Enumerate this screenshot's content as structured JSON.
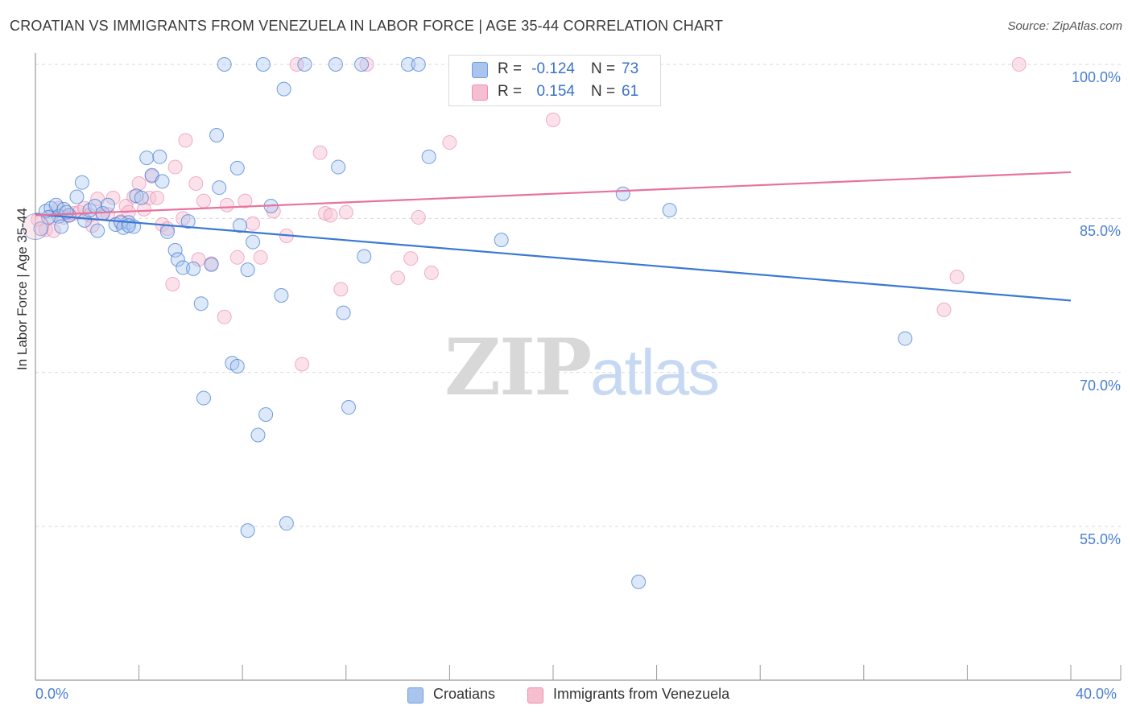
{
  "title": "CROATIAN VS IMMIGRANTS FROM VENEZUELA IN LABOR FORCE | AGE 35-44 CORRELATION CHART",
  "source": "Source: ZipAtlas.com",
  "watermark": {
    "zip": "ZIP",
    "atlas": "atlas"
  },
  "legend": {
    "rows": [
      {
        "r_label": "R =",
        "r_value": "-0.124",
        "n_label": "N =",
        "n_value": "73"
      },
      {
        "r_label": "R =",
        "r_value": "0.154",
        "n_label": "N =",
        "n_value": "61"
      }
    ]
  },
  "bottom_legend": {
    "series1": "Croatians",
    "series2": "Immigrants from Venezuela"
  },
  "chart_data": {
    "type": "scatter",
    "title": "CROATIAN VS IMMIGRANTS FROM VENEZUELA IN LABOR FORCE | AGE 35-44 CORRELATION CHART",
    "xlabel": "",
    "ylabel": "In Labor Force | Age 35-44",
    "xlim": [
      0,
      40
    ],
    "ylim": [
      40,
      103.5
    ],
    "x_tick_labels": [
      "0.0%",
      "40.0%"
    ],
    "y_ticks": [
      55,
      70,
      85,
      100
    ],
    "y_tick_labels": [
      "55.0%",
      "70.0%",
      "85.0%",
      "100.0%"
    ],
    "grid": true,
    "colors": {
      "series1": "#3a78d4",
      "series2": "#e8729e",
      "series1_fill": "#a9c5ee",
      "series2_fill": "#f6bfd0"
    },
    "series": [
      {
        "name": "Croatians",
        "trend": {
          "x": [
            0,
            40
          ],
          "y": [
            85.4,
            77.0
          ]
        },
        "points": [
          [
            0.2,
            84.0
          ],
          [
            0.4,
            85.7
          ],
          [
            0.6,
            86.0
          ],
          [
            0.8,
            86.3
          ],
          [
            0.9,
            85.2
          ],
          [
            1.1,
            85.9
          ],
          [
            1.3,
            85.3
          ],
          [
            1.6,
            87.1
          ],
          [
            1.8,
            88.5
          ],
          [
            1.9,
            84.8
          ],
          [
            2.1,
            85.8
          ],
          [
            2.3,
            86.2
          ],
          [
            2.4,
            83.8
          ],
          [
            2.6,
            85.5
          ],
          [
            2.8,
            86.3
          ],
          [
            3.1,
            84.4
          ],
          [
            3.3,
            84.6
          ],
          [
            3.4,
            84.1
          ],
          [
            3.6,
            84.6
          ],
          [
            3.8,
            84.2
          ],
          [
            3.9,
            87.2
          ],
          [
            4.1,
            87.0
          ],
          [
            4.3,
            90.9
          ],
          [
            4.5,
            89.2
          ],
          [
            4.8,
            91.0
          ],
          [
            4.9,
            88.6
          ],
          [
            5.1,
            83.7
          ],
          [
            5.4,
            81.9
          ],
          [
            5.5,
            81.0
          ],
          [
            5.7,
            80.2
          ],
          [
            5.9,
            84.7
          ],
          [
            6.1,
            80.1
          ],
          [
            6.4,
            76.7
          ],
          [
            6.5,
            67.5
          ],
          [
            6.8,
            80.5
          ],
          [
            7.0,
            93.1
          ],
          [
            7.1,
            88.0
          ],
          [
            7.3,
            100.0
          ],
          [
            7.6,
            70.9
          ],
          [
            7.8,
            70.6
          ],
          [
            7.8,
            89.9
          ],
          [
            7.9,
            84.3
          ],
          [
            8.2,
            80.0
          ],
          [
            8.2,
            54.6
          ],
          [
            8.4,
            82.7
          ],
          [
            8.6,
            63.9
          ],
          [
            8.8,
            100.0
          ],
          [
            8.9,
            65.9
          ],
          [
            9.1,
            86.2
          ],
          [
            9.5,
            77.5
          ],
          [
            9.6,
            97.6
          ],
          [
            9.7,
            55.3
          ],
          [
            10.4,
            100.0
          ],
          [
            11.6,
            100.0
          ],
          [
            11.7,
            90.0
          ],
          [
            11.9,
            75.8
          ],
          [
            12.1,
            66.6
          ],
          [
            12.6,
            100.0
          ],
          [
            12.7,
            81.3
          ],
          [
            14.4,
            100.0
          ],
          [
            14.8,
            100.0
          ],
          [
            15.2,
            91.0
          ],
          [
            16.8,
            100.0
          ],
          [
            18.0,
            82.9
          ],
          [
            18.4,
            100.0
          ],
          [
            22.7,
            87.4
          ],
          [
            23.3,
            49.6
          ],
          [
            24.5,
            85.8
          ],
          [
            33.6,
            73.3
          ],
          [
            1.0,
            84.2
          ],
          [
            3.6,
            84.3
          ],
          [
            0.5,
            85.1
          ],
          [
            1.2,
            85.6
          ]
        ]
      },
      {
        "name": "Immigrants from Venezuela",
        "trend": {
          "x": [
            0,
            40
          ],
          "y": [
            85.3,
            89.5
          ]
        },
        "points": [
          [
            0.1,
            84.9
          ],
          [
            0.4,
            83.9
          ],
          [
            0.6,
            85.2
          ],
          [
            0.7,
            83.8
          ],
          [
            0.9,
            86.0
          ],
          [
            1.1,
            85.1
          ],
          [
            1.3,
            85.3
          ],
          [
            1.5,
            85.5
          ],
          [
            1.7,
            85.6
          ],
          [
            1.9,
            86.0
          ],
          [
            2.1,
            85.3
          ],
          [
            2.2,
            84.3
          ],
          [
            2.4,
            86.9
          ],
          [
            2.6,
            85.5
          ],
          [
            2.8,
            85.4
          ],
          [
            3.0,
            87.0
          ],
          [
            3.3,
            84.7
          ],
          [
            3.5,
            86.2
          ],
          [
            3.6,
            85.6
          ],
          [
            3.8,
            87.1
          ],
          [
            4.0,
            88.4
          ],
          [
            4.2,
            85.9
          ],
          [
            4.4,
            87.0
          ],
          [
            4.5,
            89.1
          ],
          [
            4.7,
            87.0
          ],
          [
            4.9,
            84.4
          ],
          [
            5.1,
            84.0
          ],
          [
            5.3,
            78.6
          ],
          [
            5.4,
            90.0
          ],
          [
            5.7,
            85.0
          ],
          [
            5.8,
            92.6
          ],
          [
            6.2,
            88.4
          ],
          [
            6.3,
            81.0
          ],
          [
            6.5,
            86.7
          ],
          [
            6.8,
            80.6
          ],
          [
            7.3,
            75.4
          ],
          [
            7.4,
            86.3
          ],
          [
            7.8,
            81.2
          ],
          [
            8.1,
            86.7
          ],
          [
            8.4,
            84.5
          ],
          [
            8.7,
            81.2
          ],
          [
            9.2,
            85.7
          ],
          [
            9.7,
            83.3
          ],
          [
            10.1,
            100.0
          ],
          [
            10.3,
            70.8
          ],
          [
            11.0,
            91.4
          ],
          [
            11.2,
            85.5
          ],
          [
            11.4,
            85.3
          ],
          [
            11.8,
            78.1
          ],
          [
            12.0,
            85.6
          ],
          [
            12.8,
            100.0
          ],
          [
            14.0,
            79.2
          ],
          [
            14.5,
            81.1
          ],
          [
            14.8,
            85.1
          ],
          [
            15.3,
            79.7
          ],
          [
            16.0,
            92.4
          ],
          [
            20.0,
            94.6
          ],
          [
            20.8,
            100.0
          ],
          [
            35.1,
            76.1
          ],
          [
            35.6,
            79.3
          ],
          [
            38.0,
            100.0
          ]
        ]
      }
    ]
  }
}
